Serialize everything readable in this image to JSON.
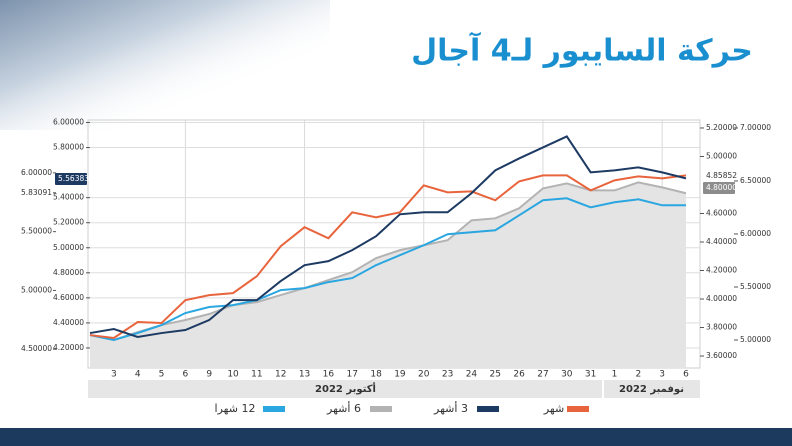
{
  "chart_data": {
    "type": "line",
    "title": "حركة السايبور لـ4 آجال",
    "categories": [
      null,
      "3",
      "4",
      "5",
      "6",
      "9",
      "10",
      "11",
      "12",
      "13",
      "16",
      "17",
      "18",
      "19",
      "20",
      "23",
      "24",
      "25",
      "26",
      "27",
      "30",
      "31",
      "1",
      "2",
      "3",
      "6"
    ],
    "groups": [
      "أكتوبر 2022",
      "نوفمبر 2022"
    ],
    "series": [
      {
        "name": "شهر",
        "color": "#e8643c",
        "values": [
          4.303,
          4.28,
          4.407,
          4.399,
          4.582,
          4.622,
          4.638,
          4.773,
          5.012,
          5.164,
          5.076,
          5.283,
          5.243,
          5.283,
          5.498,
          5.442,
          5.45,
          5.379,
          5.53,
          5.578,
          5.578,
          5.458,
          5.538,
          5.57,
          5.554,
          5.578
        ]
      },
      {
        "name": "3 أشهر",
        "color": "#1d3a63",
        "values": [
          4.319,
          4.351,
          4.288,
          4.319,
          4.343,
          4.423,
          4.582,
          4.582,
          4.734,
          4.861,
          4.893,
          4.981,
          5.092,
          5.267,
          5.283,
          5.283,
          5.435,
          5.618,
          5.713,
          5.801,
          5.889,
          5.602,
          5.618,
          5.642,
          5.602,
          5.554
        ]
      },
      {
        "name": "6 أشهر",
        "color": "#b3b3b3",
        "fill": "#e4e4e4",
        "values": [
          4.303,
          4.264,
          4.327,
          4.383,
          4.423,
          4.471,
          4.542,
          4.566,
          4.622,
          4.678,
          4.742,
          4.805,
          4.917,
          4.981,
          5.02,
          5.06,
          5.219,
          5.235,
          5.315,
          5.474,
          5.514,
          5.458,
          5.458,
          5.522,
          5.482,
          5.435
        ]
      },
      {
        "name": "12 شهرا",
        "color": "#2aa6e0",
        "values": [
          4.303,
          4.264,
          4.319,
          4.383,
          4.479,
          4.527,
          4.542,
          4.582,
          4.662,
          4.678,
          4.726,
          4.758,
          4.861,
          4.941,
          5.02,
          5.108,
          5.124,
          5.14,
          5.259,
          5.379,
          5.395,
          5.323,
          5.363,
          5.387,
          5.339,
          5.339
        ]
      }
    ],
    "ylim": [
      4.04,
      6.02
    ],
    "yticks": [
      {
        "value": 6.0,
        "label": "6.00000"
      },
      {
        "value": 5.8,
        "label": "5.80000"
      },
      {
        "value": 5.4,
        "label": "5.40000"
      },
      {
        "value": 5.2,
        "label": "5.20000"
      },
      {
        "value": 5.0,
        "label": "5.00000"
      },
      {
        "value": 4.8,
        "label": "4.80000"
      },
      {
        "value": 4.6,
        "label": "4.60000"
      },
      {
        "value": 4.4,
        "label": "4.40000"
      },
      {
        "value": 4.2,
        "label": "4.20000"
      }
    ],
    "y3lim": [
      4.34,
      6.45
    ],
    "y3ticks": [
      {
        "value": 6.0,
        "label": "6.00000"
      },
      5.83091,
      {
        "value": 5.5,
        "label": "5.50000"
      },
      {
        "value": 5.0,
        "label": "5.00000"
      },
      {
        "value": 4.5,
        "label": "4.50000"
      }
    ],
    "y2lim": [
      3.516,
      5.256
    ],
    "y2ticks": [
      {
        "value": 5.2,
        "label": "5.20000"
      },
      {
        "value": 5.0,
        "label": "5.00000"
      },
      {
        "value": 4.6,
        "label": "4.60000"
      },
      {
        "value": 4.4,
        "label": "4.40000"
      },
      {
        "value": 4.2,
        "label": "4.20000"
      },
      {
        "value": 4.0,
        "label": "4.00000"
      },
      {
        "value": 3.8,
        "label": "3.80000"
      },
      {
        "value": 3.6,
        "label": "3.60000"
      }
    ],
    "y4lim": [
      4.736,
      7.075
    ],
    "y4ticks": [
      {
        "value": 7.0,
        "label": "7.00000"
      },
      {
        "value": 6.5,
        "label": "6.50000"
      },
      {
        "value": 6.0,
        "label": "6.00000"
      },
      {
        "value": 5.5,
        "label": "5.50000"
      },
      {
        "value": 5.0,
        "label": "5.00000"
      }
    ],
    "badges": [
      "5.56383",
      "4.85852",
      "4.80000"
    ],
    "grid": true
  }
}
